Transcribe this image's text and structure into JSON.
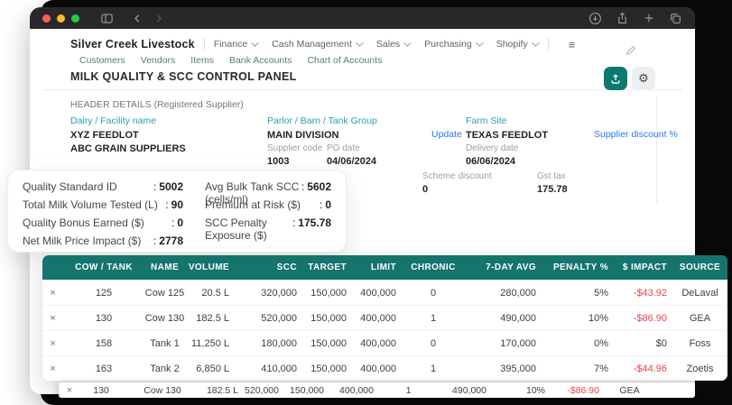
{
  "nav": {
    "brand": "Silver Creek Livestock",
    "menus": [
      "Finance",
      "Cash Management",
      "Sales",
      "Purchasing",
      "Shopify"
    ],
    "sub_links": [
      "Customers",
      "Vendors",
      "Items",
      "Bank Accounts",
      "Chart of Accounts"
    ]
  },
  "page": {
    "title": "MILK QUALITY & SCC CONTROL PANEL",
    "section_title": "HEADER DETAILS (Registered Supplier)"
  },
  "header_details": {
    "facility": {
      "label": "Dairy / Facility name",
      "line1": "XYZ FEEDLOT",
      "line2": "ABC GRAIN SUPPLIERS"
    },
    "parlor": {
      "label": "Parlor / Barn / Tank Group",
      "value": "MAIN DIVISION"
    },
    "supplier_code": {
      "label": "Supplier code",
      "value": "1003"
    },
    "po_date": {
      "label": "PO date",
      "value": "04/06/2024"
    },
    "update_link": "Update",
    "farm_site": {
      "label": "Farm Site",
      "value": "TEXAS FEEDLOT"
    },
    "delivery_date": {
      "label": "Delivery date",
      "value": "06/06/2024"
    },
    "supplier_discount_link": "Supplier discount %",
    "scheme_discount": {
      "label": "Scheme discount",
      "value": "0"
    },
    "gst_tax": {
      "label": "Gst tax",
      "value": "175.78"
    }
  },
  "stats_card": {
    "colon_glyph": ":",
    "left": [
      {
        "label": "Quality Standard ID",
        "value": "5002"
      },
      {
        "label": "Total Milk Volume Tested (L)",
        "value": "90"
      },
      {
        "label": "Quality Bonus Earned ($)",
        "value": "0"
      },
      {
        "label": "Net Milk Price Impact ($)",
        "value": "2778"
      }
    ],
    "right": [
      {
        "label": "Avg Bulk Tank SCC (cells/ml)",
        "value": "5602"
      },
      {
        "label": "Premium at Risk ($)",
        "value": "0"
      },
      {
        "label": "SCC Penalty Exposure ($)",
        "value": "175.78"
      }
    ]
  },
  "table": {
    "close_glyph": "×",
    "columns": [
      "COW / TANK",
      "NAME",
      "VOLUME",
      "SCC",
      "TARGET",
      "LIMIT",
      "CHRONIC",
      "7-DAY AVG",
      "PENALTY %",
      "$ IMPACT",
      "SOURCE"
    ],
    "rows": [
      {
        "id": "125",
        "name": "Cow 125",
        "volume": "20.5 L",
        "scc": "320,000",
        "target": "150,000",
        "limit": "400,000",
        "chronic": "0",
        "avg7": "280,000",
        "penalty": "5%",
        "impact": "-$43.92",
        "negative": true,
        "source": "DeLaval"
      },
      {
        "id": "130",
        "name": "Cow 130",
        "volume": "182.5 L",
        "scc": "520,000",
        "target": "150,000",
        "limit": "400,000",
        "chronic": "1",
        "avg7": "490,000",
        "penalty": "10%",
        "impact": "-$86.90",
        "negative": true,
        "source": "GEA"
      },
      {
        "id": "158",
        "name": "Tank 1",
        "volume": "11,250 L",
        "scc": "180,000",
        "target": "150,000",
        "limit": "400,000",
        "chronic": "0",
        "avg7": "170,000",
        "penalty": "0%",
        "impact": "$0",
        "negative": false,
        "source": "Foss"
      },
      {
        "id": "163",
        "name": "Tank 2",
        "volume": "6,850 L",
        "scc": "410,000",
        "target": "150,000",
        "limit": "400,000",
        "chronic": "1",
        "avg7": "395,000",
        "penalty": "7%",
        "impact": "-$44.96",
        "negative": true,
        "source": "Zoetis"
      }
    ]
  },
  "ghost_row": {
    "id": "130",
    "name": "Cow 130",
    "volume": "182.5 L",
    "scc": "520,000",
    "target": "150,000",
    "limit": "400,000",
    "chronic": "1",
    "avg7": "490,000",
    "penalty": "10%",
    "impact": "-$86.90",
    "negative": true,
    "source": "GEA"
  },
  "colors": {
    "table_header_teal": "#15746b",
    "accent_teal_button": "#0e7a6e",
    "field_label_teal": "#2aa0ad",
    "link_blue": "#2779f5",
    "negative_red": "#e5484d",
    "traffic_lights": [
      "#ff5f57",
      "#febc2e",
      "#28c840"
    ]
  }
}
